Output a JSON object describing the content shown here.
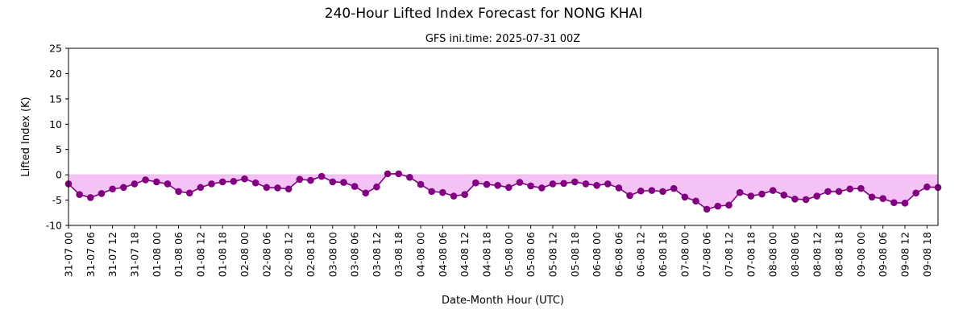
{
  "chart_data": {
    "type": "line",
    "title": "240-Hour Lifted Index Forecast for NONG KHAI",
    "subtitle": "GFS ini.time: 2025-07-31 00Z",
    "xlabel": "Date-Month Hour (UTC)",
    "ylabel": "Lifted Index (K)",
    "ylim": [
      -10,
      25
    ],
    "yticks": [
      -10,
      -5,
      0,
      5,
      10,
      15,
      20,
      25
    ],
    "grid": false,
    "line_color": "#800080",
    "fill_color": "#f4c2f4",
    "fill_below": 0,
    "x_step_hours": 3,
    "xtick_labels": [
      "31-07 00",
      "31-07 06",
      "31-07 12",
      "31-07 18",
      "01-08 00",
      "01-08 06",
      "01-08 12",
      "01-08 18",
      "02-08 00",
      "02-08 06",
      "02-08 12",
      "02-08 18",
      "03-08 00",
      "03-08 06",
      "03-08 12",
      "03-08 18",
      "04-08 00",
      "04-08 06",
      "04-08 12",
      "04-08 18",
      "05-08 00",
      "05-08 06",
      "05-08 12",
      "05-08 18",
      "06-08 00",
      "06-08 06",
      "06-08 12",
      "06-08 18",
      "07-08 00",
      "07-08 06",
      "07-08 12",
      "07-08 18",
      "08-08 00",
      "08-08 06",
      "08-08 12",
      "08-08 18",
      "09-08 00",
      "09-08 06",
      "09-08 12",
      "09-08 18"
    ],
    "values": [
      -1.8,
      -3.9,
      -4.5,
      -3.7,
      -2.8,
      -2.5,
      -1.8,
      -1.0,
      -1.4,
      -1.8,
      -3.3,
      -3.6,
      -2.5,
      -1.8,
      -1.4,
      -1.3,
      -0.8,
      -1.6,
      -2.5,
      -2.6,
      -2.8,
      -0.9,
      -1.1,
      -0.3,
      -1.4,
      -1.5,
      -2.3,
      -3.6,
      -2.4,
      0.2,
      0.2,
      -0.5,
      -1.9,
      -3.3,
      -3.5,
      -4.2,
      -3.9,
      -1.6,
      -1.9,
      -2.1,
      -2.5,
      -1.5,
      -2.2,
      -2.6,
      -1.8,
      -1.7,
      -1.4,
      -1.8,
      -2.1,
      -1.8,
      -2.6,
      -4.1,
      -3.2,
      -3.1,
      -3.3,
      -2.7,
      -4.4,
      -5.2,
      -6.8,
      -6.2,
      -6.0,
      -3.5,
      -4.2,
      -3.8,
      -3.1,
      -4.0,
      -4.8,
      -4.9,
      -4.2,
      -3.3,
      -3.3,
      -2.8,
      -2.7,
      -4.4,
      -4.7,
      -5.5,
      -5.6,
      -3.6,
      -2.4,
      -2.5
    ]
  }
}
